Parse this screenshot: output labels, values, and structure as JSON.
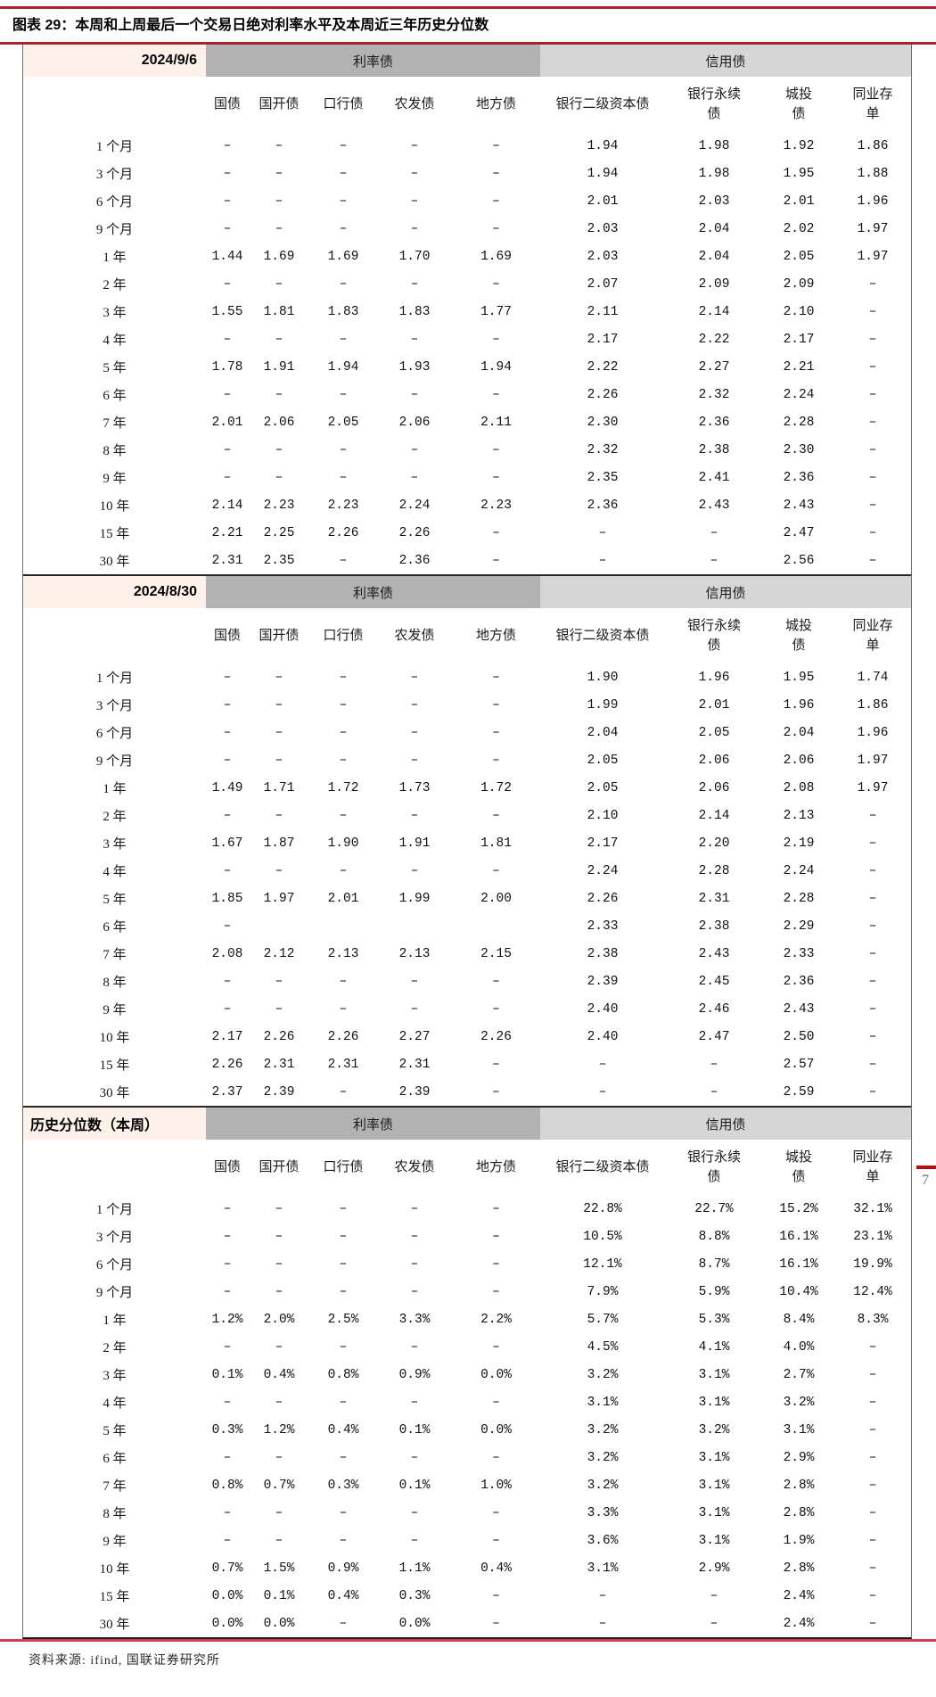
{
  "title": "图表 29：本周和上周最后一个交易日绝对利率水平及本周近三年历史分位数",
  "source": "资料来源: ifind, 国联证券研究所",
  "page_number": "7",
  "colors": {
    "title_rule_red": "#a8232b",
    "bottom_rule_red": "#d24057",
    "date_cell_pink": "#fdf1ea",
    "rate_bond_gray": "#b2b2b2",
    "credit_bond_gray": "#d6d6d6"
  },
  "columns": {
    "group1": "利率债",
    "group2": "信用债",
    "headers": [
      "国债",
      "国开债",
      "口行债",
      "农发债",
      "地方债",
      "银行二级资本债",
      "银行永续\n债",
      "城投\n债",
      "同业存\n单"
    ]
  },
  "sections": [
    {
      "label": "2024/9/6",
      "rows": [
        {
          "term": "1 个月",
          "values": [
            "–",
            "–",
            "–",
            "–",
            "–",
            "1.94",
            "1.98",
            "1.92",
            "1.86"
          ]
        },
        {
          "term": "3 个月",
          "values": [
            "–",
            "–",
            "–",
            "–",
            "–",
            "1.94",
            "1.98",
            "1.95",
            "1.88"
          ]
        },
        {
          "term": "6 个月",
          "values": [
            "–",
            "–",
            "–",
            "–",
            "–",
            "2.01",
            "2.03",
            "2.01",
            "1.96"
          ]
        },
        {
          "term": "9 个月",
          "values": [
            "–",
            "–",
            "–",
            "–",
            "–",
            "2.03",
            "2.04",
            "2.02",
            "1.97"
          ]
        },
        {
          "term": "1 年",
          "values": [
            "1.44",
            "1.69",
            "1.69",
            "1.70",
            "1.69",
            "2.03",
            "2.04",
            "2.05",
            "1.97"
          ]
        },
        {
          "term": "2 年",
          "values": [
            "–",
            "–",
            "–",
            "–",
            "–",
            "2.07",
            "2.09",
            "2.09",
            "–"
          ]
        },
        {
          "term": "3 年",
          "values": [
            "1.55",
            "1.81",
            "1.83",
            "1.83",
            "1.77",
            "2.11",
            "2.14",
            "2.10",
            "–"
          ]
        },
        {
          "term": "4 年",
          "values": [
            "–",
            "–",
            "–",
            "–",
            "–",
            "2.17",
            "2.22",
            "2.17",
            "–"
          ]
        },
        {
          "term": "5 年",
          "values": [
            "1.78",
            "1.91",
            "1.94",
            "1.93",
            "1.94",
            "2.22",
            "2.27",
            "2.21",
            "–"
          ]
        },
        {
          "term": "6 年",
          "values": [
            "–",
            "–",
            "–",
            "–",
            "–",
            "2.26",
            "2.32",
            "2.24",
            "–"
          ]
        },
        {
          "term": "7 年",
          "values": [
            "2.01",
            "2.06",
            "2.05",
            "2.06",
            "2.11",
            "2.30",
            "2.36",
            "2.28",
            "–"
          ]
        },
        {
          "term": "8 年",
          "values": [
            "–",
            "–",
            "–",
            "–",
            "–",
            "2.32",
            "2.38",
            "2.30",
            "–"
          ]
        },
        {
          "term": "9 年",
          "values": [
            "–",
            "–",
            "–",
            "–",
            "–",
            "2.35",
            "2.41",
            "2.36",
            "–"
          ]
        },
        {
          "term": "10 年",
          "values": [
            "2.14",
            "2.23",
            "2.23",
            "2.24",
            "2.23",
            "2.36",
            "2.43",
            "2.43",
            "–"
          ]
        },
        {
          "term": "15 年",
          "values": [
            "2.21",
            "2.25",
            "2.26",
            "2.26",
            "–",
            "–",
            "–",
            "2.47",
            "–"
          ]
        },
        {
          "term": "30 年",
          "values": [
            "2.31",
            "2.35",
            "–",
            "2.36",
            "–",
            "–",
            "–",
            "2.56",
            "–"
          ]
        }
      ]
    },
    {
      "label": "2024/8/30",
      "rows": [
        {
          "term": "1 个月",
          "values": [
            "–",
            "–",
            "–",
            "–",
            "–",
            "1.90",
            "1.96",
            "1.95",
            "1.74"
          ]
        },
        {
          "term": "3 个月",
          "values": [
            "–",
            "–",
            "–",
            "–",
            "–",
            "1.99",
            "2.01",
            "1.96",
            "1.86"
          ]
        },
        {
          "term": "6 个月",
          "values": [
            "–",
            "–",
            "–",
            "–",
            "–",
            "2.04",
            "2.05",
            "2.04",
            "1.96"
          ]
        },
        {
          "term": "9 个月",
          "values": [
            "–",
            "–",
            "–",
            "–",
            "–",
            "2.05",
            "2.06",
            "2.06",
            "1.97"
          ]
        },
        {
          "term": "1 年",
          "values": [
            "1.49",
            "1.71",
            "1.72",
            "1.73",
            "1.72",
            "2.05",
            "2.06",
            "2.08",
            "1.97"
          ]
        },
        {
          "term": "2 年",
          "values": [
            "–",
            "–",
            "–",
            "–",
            "–",
            "2.10",
            "2.14",
            "2.13",
            "–"
          ]
        },
        {
          "term": "3 年",
          "values": [
            "1.67",
            "1.87",
            "1.90",
            "1.91",
            "1.81",
            "2.17",
            "2.20",
            "2.19",
            "–"
          ]
        },
        {
          "term": "4 年",
          "values": [
            "–",
            "–",
            "–",
            "–",
            "–",
            "2.24",
            "2.28",
            "2.24",
            "–"
          ]
        },
        {
          "term": "5 年",
          "values": [
            "1.85",
            "1.97",
            "2.01",
            "1.99",
            "2.00",
            "2.26",
            "2.31",
            "2.28",
            "–"
          ]
        },
        {
          "term": "6 年",
          "values": [
            "–",
            "",
            "",
            "",
            "",
            "2.33",
            "2.38",
            "2.29",
            "–"
          ]
        },
        {
          "term": "7 年",
          "values": [
            "2.08",
            "2.12",
            "2.13",
            "2.13",
            "2.15",
            "2.38",
            "2.43",
            "2.33",
            "–"
          ]
        },
        {
          "term": "8 年",
          "values": [
            "–",
            "–",
            "–",
            "–",
            "–",
            "2.39",
            "2.45",
            "2.36",
            "–"
          ]
        },
        {
          "term": "9 年",
          "values": [
            "–",
            "–",
            "–",
            "–",
            "–",
            "2.40",
            "2.46",
            "2.43",
            "–"
          ]
        },
        {
          "term": "10 年",
          "values": [
            "2.17",
            "2.26",
            "2.26",
            "2.27",
            "2.26",
            "2.40",
            "2.47",
            "2.50",
            "–"
          ]
        },
        {
          "term": "15 年",
          "values": [
            "2.26",
            "2.31",
            "2.31",
            "2.31",
            "–",
            "–",
            "–",
            "2.57",
            "–"
          ]
        },
        {
          "term": "30 年",
          "values": [
            "2.37",
            "2.39",
            "–",
            "2.39",
            "–",
            "–",
            "–",
            "2.59",
            "–"
          ]
        }
      ]
    },
    {
      "label": "历史分位数（本周）",
      "rows": [
        {
          "term": "1 个月",
          "values": [
            "–",
            "–",
            "–",
            "–",
            "–",
            "22.8%",
            "22.7%",
            "15.2%",
            "32.1%"
          ]
        },
        {
          "term": "3 个月",
          "values": [
            "–",
            "–",
            "–",
            "–",
            "–",
            "10.5%",
            "8.8%",
            "16.1%",
            "23.1%"
          ]
        },
        {
          "term": "6 个月",
          "values": [
            "–",
            "–",
            "–",
            "–",
            "–",
            "12.1%",
            "8.7%",
            "16.1%",
            "19.9%"
          ]
        },
        {
          "term": "9 个月",
          "values": [
            "–",
            "–",
            "–",
            "–",
            "–",
            "7.9%",
            "5.9%",
            "10.4%",
            "12.4%"
          ]
        },
        {
          "term": "1 年",
          "values": [
            "1.2%",
            "2.0%",
            "2.5%",
            "3.3%",
            "2.2%",
            "5.7%",
            "5.3%",
            "8.4%",
            "8.3%"
          ]
        },
        {
          "term": "2 年",
          "values": [
            "–",
            "–",
            "–",
            "–",
            "–",
            "4.5%",
            "4.1%",
            "4.0%",
            "–"
          ]
        },
        {
          "term": "3 年",
          "values": [
            "0.1%",
            "0.4%",
            "0.8%",
            "0.9%",
            "0.0%",
            "3.2%",
            "3.1%",
            "2.7%",
            "–"
          ]
        },
        {
          "term": "4 年",
          "values": [
            "–",
            "–",
            "–",
            "–",
            "–",
            "3.1%",
            "3.1%",
            "3.2%",
            "–"
          ]
        },
        {
          "term": "5 年",
          "values": [
            "0.3%",
            "1.2%",
            "0.4%",
            "0.1%",
            "0.0%",
            "3.2%",
            "3.2%",
            "3.1%",
            "–"
          ]
        },
        {
          "term": "6 年",
          "values": [
            "–",
            "–",
            "–",
            "–",
            "–",
            "3.2%",
            "3.1%",
            "2.9%",
            "–"
          ]
        },
        {
          "term": "7 年",
          "values": [
            "0.8%",
            "0.7%",
            "0.3%",
            "0.1%",
            "1.0%",
            "3.2%",
            "3.1%",
            "2.8%",
            "–"
          ]
        },
        {
          "term": "8 年",
          "values": [
            "–",
            "–",
            "–",
            "–",
            "–",
            "3.3%",
            "3.1%",
            "2.8%",
            "–"
          ]
        },
        {
          "term": "9 年",
          "values": [
            "–",
            "–",
            "–",
            "–",
            "–",
            "3.6%",
            "3.1%",
            "1.9%",
            "–"
          ]
        },
        {
          "term": "10 年",
          "values": [
            "0.7%",
            "1.5%",
            "0.9%",
            "1.1%",
            "0.4%",
            "3.1%",
            "2.9%",
            "2.8%",
            "–"
          ]
        },
        {
          "term": "15 年",
          "values": [
            "0.0%",
            "0.1%",
            "0.4%",
            "0.3%",
            "–",
            "–",
            "–",
            "2.4%",
            "–"
          ]
        },
        {
          "term": "30 年",
          "values": [
            "0.0%",
            "0.0%",
            "–",
            "0.0%",
            "–",
            "–",
            "–",
            "2.4%",
            "–"
          ]
        }
      ]
    }
  ]
}
